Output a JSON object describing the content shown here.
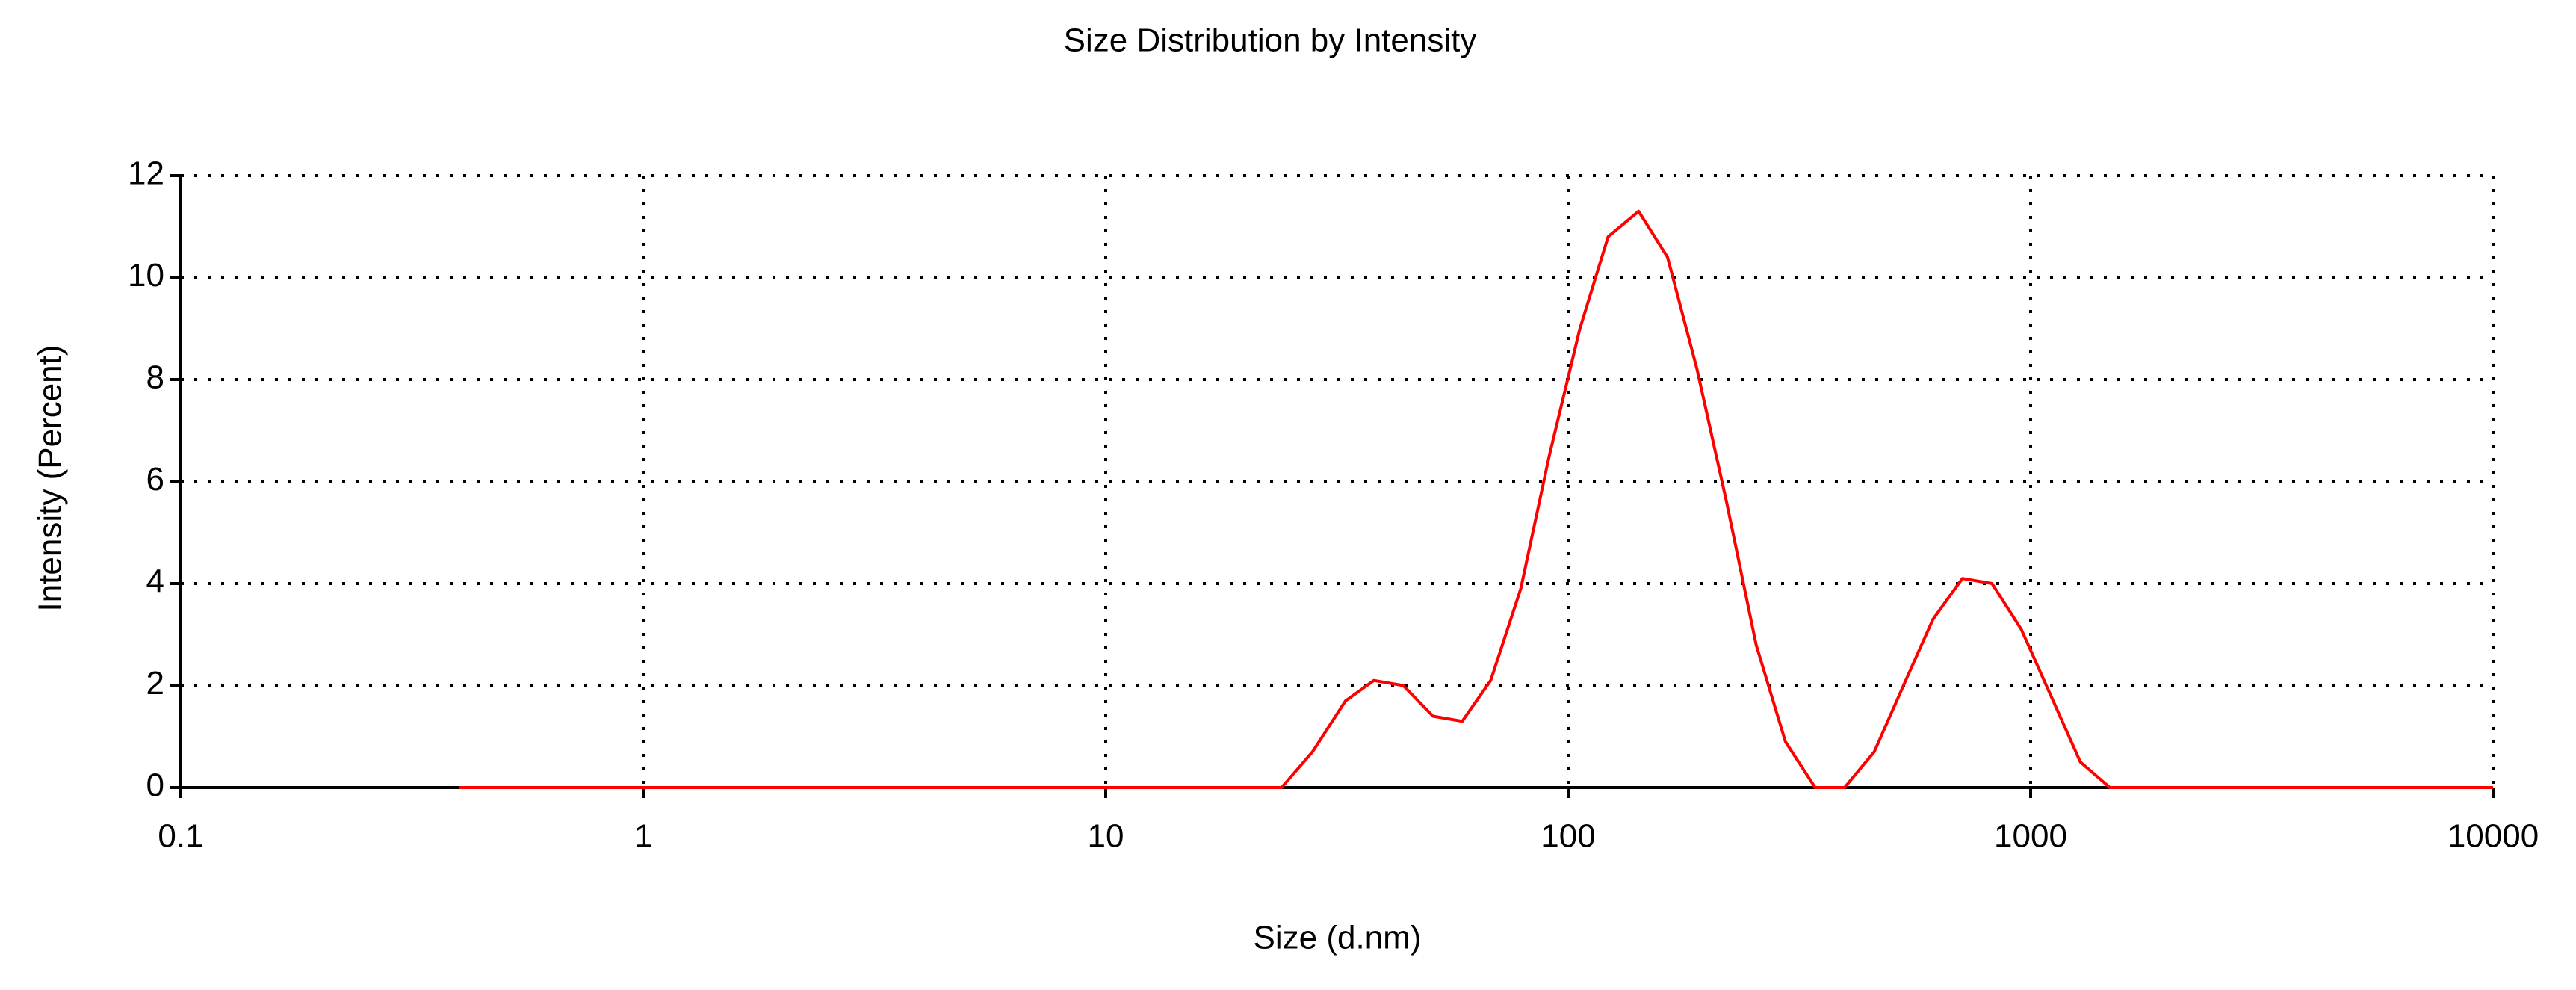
{
  "chart_data": {
    "type": "line",
    "title": "Size Distribution by Intensity",
    "x_label": "Size (d.nm)",
    "y_label": "Intensity (Percent)",
    "x": [
      0.4,
      24,
      28,
      33,
      38,
      44,
      51,
      59,
      68,
      79,
      91,
      106,
      122,
      142,
      164,
      190,
      220,
      255,
      295,
      342,
      396,
      459,
      531,
      615,
      712,
      825,
      955,
      1106,
      1281,
      1484,
      10000
    ],
    "values": [
      0,
      0,
      0.7,
      1.7,
      2.1,
      2.0,
      1.4,
      1.3,
      2.1,
      3.9,
      6.5,
      9.0,
      10.8,
      11.3,
      10.4,
      8.2,
      5.6,
      2.8,
      0.9,
      0,
      0,
      0.7,
      2.0,
      3.3,
      4.1,
      4.0,
      3.1,
      1.8,
      0.5,
      0,
      0
    ],
    "color": "#ff0000",
    "x_log": true,
    "xlim": [
      0.1,
      10000
    ],
    "xticks": [
      0.1,
      1,
      10,
      100,
      1000,
      10000
    ],
    "ylim": [
      0,
      12
    ],
    "yticks": [
      0,
      2,
      4,
      6,
      8,
      10,
      12
    ],
    "grid": true
  }
}
